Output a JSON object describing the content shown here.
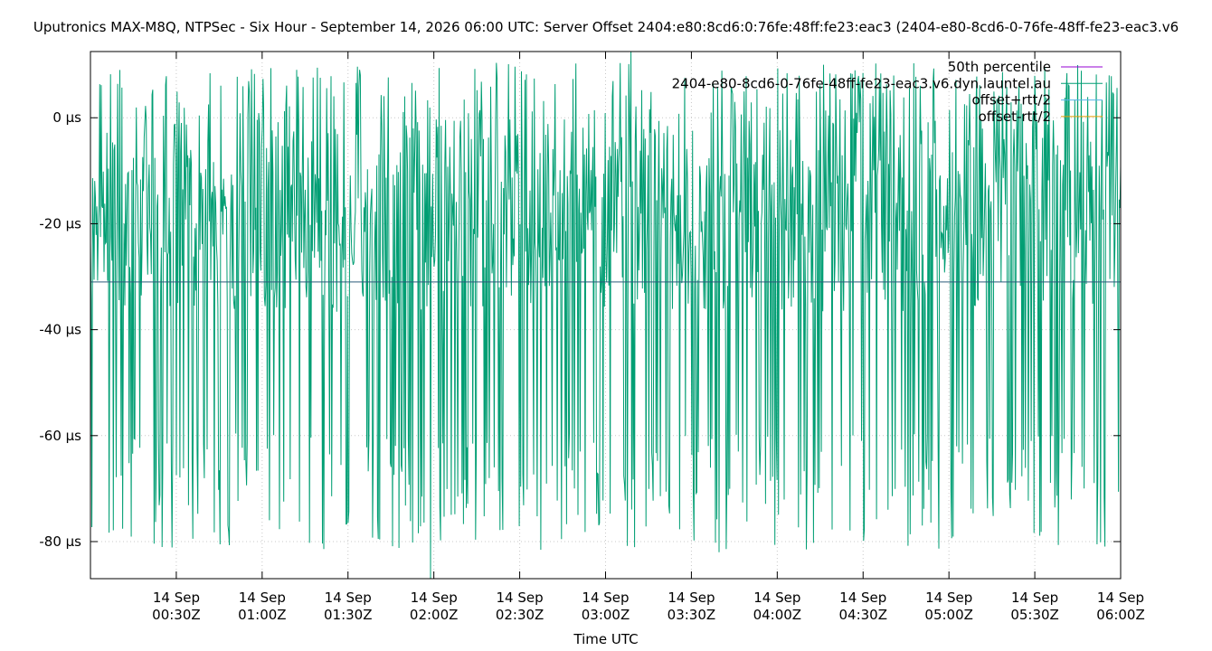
{
  "chart_data": {
    "type": "line",
    "title": "Uputronics MAX-M8Q, NTPSec - Six Hour - September 14, 2026 06:00 UTC: Server Offset 2404:e80:8cd6:0:76fe:48ff:fe23:eac3 (2404-e80-8cd6-0-76fe-48ff-fe23-eac3.v6",
    "xlabel": "Time UTC",
    "ylabel": "",
    "x_range": [
      "2026-09-14T00:00:00Z",
      "2026-09-14T06:00:00Z"
    ],
    "ylim": [
      -87,
      12.5
    ],
    "y_unit": "µs",
    "grid": true,
    "legend_position": "top-right",
    "y_ticks": [
      "0 µs",
      "-20 µs",
      "-40 µs",
      "-60 µs",
      "-80 µs"
    ],
    "y_tick_values": [
      0,
      -20,
      -40,
      -60,
      -80
    ],
    "x_ticks": [
      {
        "line1": "14 Sep",
        "line2": "00:30Z",
        "t": "2026-09-14T00:30:00Z"
      },
      {
        "line1": "14 Sep",
        "line2": "01:00Z",
        "t": "2026-09-14T01:00:00Z"
      },
      {
        "line1": "14 Sep",
        "line2": "01:30Z",
        "t": "2026-09-14T01:30:00Z"
      },
      {
        "line1": "14 Sep",
        "line2": "02:00Z",
        "t": "2026-09-14T02:00:00Z"
      },
      {
        "line1": "14 Sep",
        "line2": "02:30Z",
        "t": "2026-09-14T02:30:00Z"
      },
      {
        "line1": "14 Sep",
        "line2": "03:00Z",
        "t": "2026-09-14T03:00:00Z"
      },
      {
        "line1": "14 Sep",
        "line2": "03:30Z",
        "t": "2026-09-14T03:30:00Z"
      },
      {
        "line1": "14 Sep",
        "line2": "04:00Z",
        "t": "2026-09-14T04:00:00Z"
      },
      {
        "line1": "14 Sep",
        "line2": "04:30Z",
        "t": "2026-09-14T04:30:00Z"
      },
      {
        "line1": "14 Sep",
        "line2": "05:00Z",
        "t": "2026-09-14T05:00:00Z"
      },
      {
        "line1": "14 Sep",
        "line2": "05:30Z",
        "t": "2026-09-14T05:30:00Z"
      },
      {
        "line1": "14 Sep",
        "line2": "06:00Z",
        "t": "2026-09-14T06:00:00Z"
      }
    ],
    "series": [
      {
        "name": "50th percentile",
        "color": "#9400d3",
        "value": -31
      },
      {
        "name": "2404-e80-8cd6-0-76fe-48ff-fe23-eac3.v6.dyn.launtel.au",
        "color": "#009e73",
        "summary": {
          "center": -31,
          "typical_low": -75,
          "typical_high": -5,
          "min": -87,
          "max": 12.5
        }
      },
      {
        "name": "offset+rtt/2",
        "color": "#56b4e9"
      },
      {
        "name": "offset-rtt/2",
        "color": "#e69f00"
      }
    ]
  }
}
